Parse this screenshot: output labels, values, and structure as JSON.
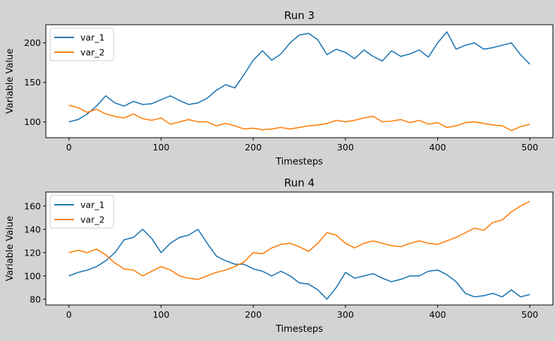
{
  "figure": {
    "background": "#d3d3d3"
  },
  "chart_data": [
    {
      "type": "line",
      "title": "Run 3",
      "xlabel": "Timesteps",
      "ylabel": "Variable Value",
      "xlim": [
        -25,
        525
      ],
      "ylim": [
        80,
        223
      ],
      "xticks": [
        0,
        100,
        200,
        300,
        400,
        500
      ],
      "yticks": [
        100,
        150,
        200
      ],
      "legend": "upper-left",
      "grid": false,
      "series": [
        {
          "name": "var_1",
          "color": "#1f77b4",
          "x": [
            0,
            10,
            20,
            30,
            40,
            50,
            60,
            70,
            80,
            90,
            100,
            110,
            120,
            130,
            140,
            150,
            160,
            170,
            180,
            190,
            200,
            210,
            220,
            230,
            240,
            250,
            260,
            270,
            280,
            290,
            300,
            310,
            320,
            330,
            340,
            350,
            360,
            370,
            380,
            390,
            400,
            410,
            420,
            430,
            440,
            450,
            460,
            470,
            480,
            490,
            500
          ],
          "values": [
            100,
            103,
            110,
            120,
            133,
            124,
            120,
            126,
            122,
            123,
            128,
            133,
            127,
            122,
            124,
            130,
            140,
            147,
            143,
            160,
            178,
            190,
            178,
            186,
            200,
            210,
            212,
            204,
            185,
            192,
            188,
            180,
            191,
            183,
            177,
            190,
            183,
            186,
            191,
            182,
            200,
            214,
            192,
            197,
            200,
            192,
            194,
            197,
            200,
            185,
            173
          ]
        },
        {
          "name": "var_2",
          "color": "#ff7f0e",
          "x": [
            0,
            10,
            20,
            30,
            40,
            50,
            60,
            70,
            80,
            90,
            100,
            110,
            120,
            130,
            140,
            150,
            160,
            170,
            180,
            190,
            200,
            210,
            220,
            230,
            240,
            250,
            260,
            270,
            280,
            290,
            300,
            310,
            320,
            330,
            340,
            350,
            360,
            370,
            380,
            390,
            400,
            410,
            420,
            430,
            440,
            450,
            460,
            470,
            480,
            490,
            500
          ],
          "values": [
            121,
            118,
            112,
            116,
            110,
            107,
            105,
            110,
            104,
            102,
            105,
            97,
            100,
            103,
            100,
            100,
            95,
            98,
            95,
            91,
            92,
            90,
            91,
            93,
            91,
            93,
            95,
            96,
            98,
            102,
            100,
            102,
            105,
            107,
            100,
            101,
            103,
            99,
            102,
            97,
            99,
            93,
            95,
            99,
            100,
            98,
            96,
            95,
            89,
            94,
            97
          ]
        }
      ]
    },
    {
      "type": "line",
      "title": "Run 4",
      "xlabel": "Timesteps",
      "ylabel": "Variable Value",
      "xlim": [
        -25,
        525
      ],
      "ylim": [
        75,
        172
      ],
      "xticks": [
        0,
        100,
        200,
        300,
        400,
        500
      ],
      "yticks": [
        80,
        100,
        120,
        140,
        160
      ],
      "legend": "upper-left",
      "grid": false,
      "series": [
        {
          "name": "var_1",
          "color": "#1f77b4",
          "x": [
            0,
            10,
            20,
            30,
            40,
            50,
            60,
            70,
            80,
            90,
            100,
            110,
            120,
            130,
            140,
            150,
            160,
            170,
            180,
            190,
            200,
            210,
            220,
            230,
            240,
            250,
            260,
            270,
            280,
            290,
            300,
            310,
            320,
            330,
            340,
            350,
            360,
            370,
            380,
            390,
            400,
            410,
            420,
            430,
            440,
            450,
            460,
            470,
            480,
            490,
            500
          ],
          "values": [
            100,
            103,
            105,
            108,
            113,
            120,
            131,
            133,
            140,
            132,
            120,
            128,
            133,
            135,
            140,
            128,
            117,
            113,
            110,
            110,
            106,
            104,
            100,
            104,
            100,
            94,
            93,
            88,
            80,
            90,
            103,
            98,
            100,
            102,
            98,
            95,
            97,
            100,
            100,
            104,
            105,
            101,
            95,
            85,
            82,
            83,
            85,
            82,
            88,
            82,
            84
          ]
        },
        {
          "name": "var_2",
          "color": "#ff7f0e",
          "x": [
            0,
            10,
            20,
            30,
            40,
            50,
            60,
            70,
            80,
            90,
            100,
            110,
            120,
            130,
            140,
            150,
            160,
            170,
            180,
            190,
            200,
            210,
            220,
            230,
            240,
            250,
            260,
            270,
            280,
            290,
            300,
            310,
            320,
            330,
            340,
            350,
            360,
            370,
            380,
            390,
            400,
            410,
            420,
            430,
            440,
            450,
            460,
            470,
            480,
            490,
            500
          ],
          "values": [
            120,
            122,
            120,
            123,
            118,
            111,
            106,
            105,
            100,
            104,
            108,
            105,
            100,
            98,
            97,
            100,
            103,
            105,
            108,
            112,
            120,
            119,
            124,
            127,
            128,
            125,
            121,
            128,
            137,
            135,
            128,
            124,
            128,
            130,
            128,
            126,
            125,
            128,
            130,
            128,
            127,
            130,
            133,
            137,
            141,
            139,
            146,
            148,
            155,
            160,
            164
          ]
        }
      ]
    }
  ]
}
